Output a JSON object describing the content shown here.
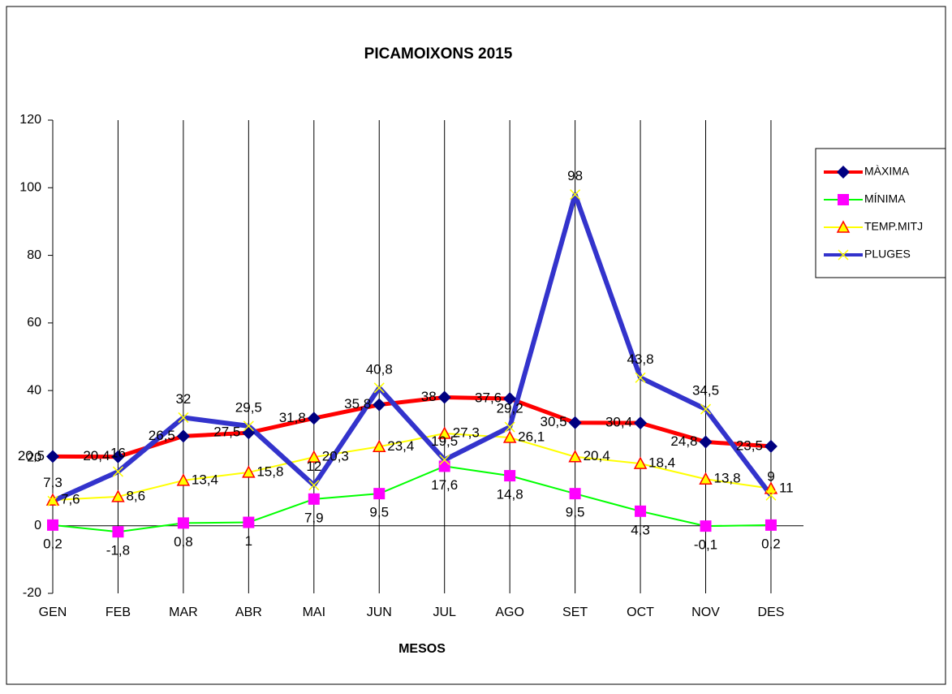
{
  "chart_data": {
    "type": "line",
    "title": "PICAMOIXONS 2015",
    "x_label": "MESOS",
    "categories": [
      "GEN",
      "FEB",
      "MAR",
      "ABR",
      "MAI",
      "JUN",
      "JUL",
      "AGO",
      "SET",
      "OCT",
      "NOV",
      "DES"
    ],
    "ylim": [
      -20,
      120
    ],
    "yticks": [
      -20,
      0,
      20,
      40,
      60,
      80,
      100,
      120
    ],
    "legend": "right",
    "series": [
      {
        "name": "MÀXIMA",
        "color": "#ff0000",
        "marker_color": "#000080",
        "values": [
          20.5,
          20.4,
          26.5,
          27.5,
          31.8,
          35.8,
          38,
          37.6,
          30.5,
          30.4,
          24.8,
          23.5
        ],
        "value_labels": [
          "20,5",
          "20,4",
          "26,5",
          "27,5",
          "31,8",
          "35,8",
          "38",
          "37,6",
          "30,5",
          "30,4",
          "24,8",
          "23,5"
        ]
      },
      {
        "name": "MÍNIMA",
        "color": "#00ff00",
        "marker_color": "#ff00ff",
        "values": [
          0.2,
          -1.8,
          0.8,
          1,
          7.9,
          9.5,
          17.6,
          14.8,
          9.5,
          4.3,
          -0.1,
          0.2
        ],
        "value_labels": [
          "0,2",
          "-1,8",
          "0,8",
          "1",
          "7,9",
          "9,5",
          "17,6",
          "14,8",
          "9,5",
          "4,3",
          "-0,1",
          "0,2"
        ]
      },
      {
        "name": "TEMP.MITJ",
        "color": "#ffff00",
        "marker_color": "#ff0000",
        "values": [
          7.6,
          8.6,
          13.4,
          15.8,
          20.3,
          23.4,
          27.3,
          26.1,
          20.4,
          18.4,
          13.8,
          11
        ],
        "value_labels": [
          "7,6",
          "8,6",
          "13,4",
          "15,8",
          "20,3",
          "23,4",
          "27,3",
          "26,1",
          "20,4",
          "18,4",
          "13,8",
          "11"
        ]
      },
      {
        "name": "PLUGES",
        "color": "#3333cc",
        "marker_color": "#ffff00",
        "values": [
          7.3,
          16,
          32,
          29.5,
          12,
          40.8,
          19.5,
          29.2,
          98,
          43.8,
          34.5,
          9
        ],
        "value_labels": [
          "7,3",
          "16",
          "32",
          "29,5",
          "12",
          "40,8",
          "19,5",
          "29,2",
          "98",
          "43,8",
          "34,5",
          "9"
        ]
      }
    ]
  }
}
